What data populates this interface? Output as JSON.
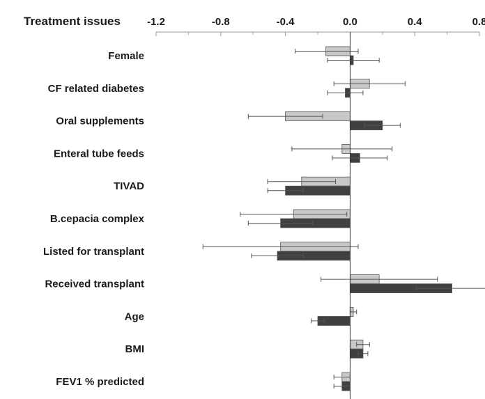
{
  "chart_data": {
    "type": "bar",
    "orientation": "horizontal",
    "title": "Treatment issues",
    "xlim": [
      -1.2,
      0.8
    ],
    "x_ticks": [
      "-1.2",
      "-0.8",
      "-0.4",
      "0.0",
      "0.4",
      "0.8"
    ],
    "x_tick_values": [
      -1.2,
      -0.8,
      -0.4,
      0.0,
      0.4,
      0.8
    ],
    "grid": false,
    "legend": "none",
    "colors": {
      "light": "#c8c8c8",
      "dark": "#404040",
      "border": "#555555"
    },
    "categories": [
      "Female",
      "CF related diabetes",
      "Oral supplements",
      "Enteral tube feeds",
      "TIVAD",
      "B.cepacia complex",
      "Listed for transplant",
      "Received transplant",
      "Age",
      "BMI",
      "FEV1 % predicted"
    ],
    "series": [
      {
        "color": "#c8c8c8",
        "values": [
          -0.15,
          0.12,
          -0.4,
          -0.05,
          -0.3,
          -0.35,
          -0.43,
          0.18,
          0.02,
          0.08,
          -0.05
        ],
        "err_low": [
          -0.34,
          -0.1,
          -0.63,
          -0.36,
          -0.51,
          -0.68,
          -0.91,
          -0.18,
          0.0,
          0.04,
          -0.1
        ],
        "err_high": [
          0.05,
          0.34,
          -0.17,
          0.26,
          -0.09,
          -0.02,
          0.05,
          0.54,
          0.04,
          0.12,
          0.0
        ]
      },
      {
        "color": "#404040",
        "values": [
          0.02,
          -0.03,
          0.2,
          0.06,
          -0.4,
          -0.43,
          -0.45,
          0.63,
          -0.2,
          0.08,
          -0.05
        ],
        "err_low": [
          -0.14,
          -0.14,
          0.09,
          -0.11,
          -0.51,
          -0.63,
          -0.61,
          0.41,
          -0.24,
          0.05,
          -0.1
        ],
        "err_high": [
          0.18,
          0.08,
          0.31,
          0.23,
          -0.29,
          -0.23,
          -0.29,
          0.85,
          -0.16,
          0.11,
          0.0
        ]
      }
    ]
  }
}
